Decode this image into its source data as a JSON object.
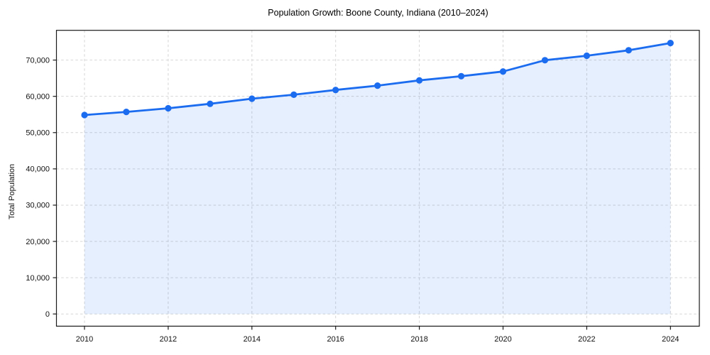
{
  "figure": {
    "background": "#ffffff"
  },
  "chart_data": {
    "type": "line",
    "title": "Population Growth: Boone County, Indiana (2010–2024)",
    "xlabel": "",
    "ylabel": "Total Population",
    "x": [
      2010,
      2011,
      2012,
      2013,
      2014,
      2015,
      2016,
      2017,
      2018,
      2019,
      2020,
      2021,
      2022,
      2023,
      2024
    ],
    "series": [
      {
        "name": "Total Population",
        "values": [
          54850,
          55700,
          56700,
          57950,
          59350,
          60450,
          61750,
          62950,
          64400,
          65550,
          66850,
          69950,
          71200,
          72700,
          74700
        ]
      }
    ],
    "xticks": [
      2010,
      2012,
      2014,
      2016,
      2018,
      2020,
      2022,
      2024
    ],
    "xtick_labels": [
      "2010",
      "2012",
      "2014",
      "2016",
      "2018",
      "2020",
      "2022",
      "2024"
    ],
    "yticks": [
      0,
      10000,
      20000,
      30000,
      40000,
      50000,
      60000,
      70000
    ],
    "ytick_labels": [
      "0",
      "10,000",
      "20,000",
      "30,000",
      "40,000",
      "50,000",
      "60,000",
      "70,000"
    ],
    "xlim": [
      2009.33,
      2024.69
    ],
    "ylim": [
      -3365,
      78200
    ],
    "grid": "dashed",
    "legend_position": "none",
    "colors": {
      "line": "#1c6cf0",
      "marker": "#1c6cf0",
      "fill": "#1c6cf0",
      "fill_opacity": 0.11,
      "grid": "#d6d6d6",
      "spine": "#1a1a1a",
      "tick_label": "#111111"
    },
    "marker": "circle"
  }
}
